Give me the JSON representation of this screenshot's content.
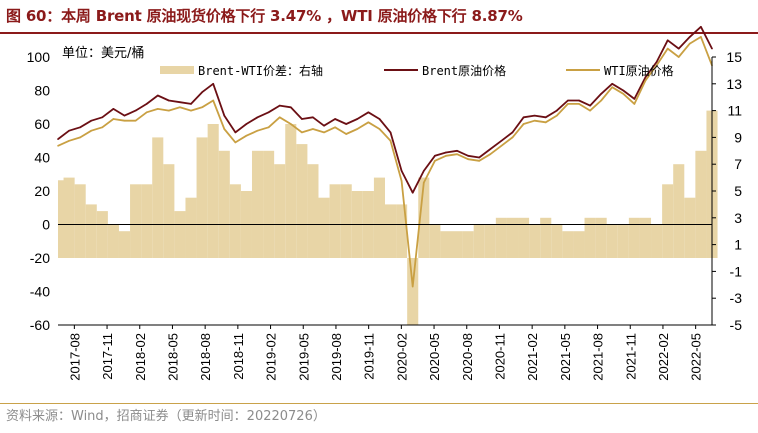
{
  "header": {
    "title": "图 60：本周 Brent 原油现货价格下行 3.47% ，WTI 原油价格下行 8.87%"
  },
  "footer": {
    "source": "资料来源：Wind，招商证券（更新时间：20220726）"
  },
  "chart_data": {
    "type": "line",
    "title": "图 60：本周 Brent 原油现货价格下行 3.47% ，WTI 原油价格下行 8.87%",
    "unit_label": "单位：美元/桶",
    "left_axis": {
      "ticks": [
        100,
        80,
        60,
        40,
        20,
        0,
        -20,
        -40,
        -60
      ],
      "range": [
        -60,
        100
      ]
    },
    "right_axis": {
      "ticks": [
        15,
        13,
        11,
        9,
        7,
        5,
        3,
        1,
        -1,
        -3,
        -5
      ],
      "range": [
        -5,
        15
      ]
    },
    "x_tick_labels": [
      "2017-08",
      "2017-11",
      "2018-02",
      "2018-05",
      "2018-08",
      "2018-11",
      "2019-02",
      "2019-05",
      "2019-08",
      "2019-11",
      "2020-02",
      "2020-05",
      "2020-08",
      "2020-11",
      "2021-02",
      "2021-05",
      "2021-08",
      "2021-11",
      "2022-02",
      "2022-05"
    ],
    "legend": [
      "Brent-WTI价差：右轴",
      "Brent原油价格",
      "WTI原油价格"
    ],
    "colors": {
      "spread": "#e8d5a6",
      "brent": "#6b0f14",
      "wti": "#c9a043"
    },
    "series": [
      {
        "name": "Brent原油价格",
        "axis": "left",
        "x": [
          "2017-08",
          "2017-09",
          "2017-10",
          "2017-11",
          "2017-12",
          "2018-01",
          "2018-02",
          "2018-03",
          "2018-04",
          "2018-05",
          "2018-06",
          "2018-07",
          "2018-08",
          "2018-09",
          "2018-10",
          "2018-11",
          "2018-12",
          "2019-01",
          "2019-02",
          "2019-03",
          "2019-04",
          "2019-05",
          "2019-06",
          "2019-07",
          "2019-08",
          "2019-09",
          "2019-10",
          "2019-11",
          "2019-12",
          "2020-01",
          "2020-02",
          "2020-03",
          "2020-04",
          "2020-05",
          "2020-06",
          "2020-07",
          "2020-08",
          "2020-09",
          "2020-10",
          "2020-11",
          "2020-12",
          "2021-01",
          "2021-02",
          "2021-03",
          "2021-04",
          "2021-05",
          "2021-06",
          "2021-07",
          "2021-08",
          "2021-09",
          "2021-10",
          "2021-11",
          "2021-12",
          "2022-01",
          "2022-02",
          "2022-03",
          "2022-04",
          "2022-05",
          "2022-06",
          "2022-07"
        ],
        "values": [
          51,
          56,
          58,
          62,
          64,
          69,
          65,
          68,
          72,
          77,
          74,
          73,
          72,
          79,
          84,
          65,
          55,
          60,
          64,
          67,
          71,
          70,
          63,
          64,
          59,
          63,
          60,
          63,
          67,
          63,
          55,
          32,
          19,
          32,
          41,
          43,
          44,
          41,
          40,
          45,
          50,
          55,
          64,
          65,
          64,
          68,
          74,
          74,
          71,
          78,
          84,
          80,
          75,
          88,
          97,
          110,
          105,
          112,
          118,
          105
        ]
      },
      {
        "name": "WTI原油价格",
        "axis": "left",
        "x": [
          "2017-08",
          "2017-09",
          "2017-10",
          "2017-11",
          "2017-12",
          "2018-01",
          "2018-02",
          "2018-03",
          "2018-04",
          "2018-05",
          "2018-06",
          "2018-07",
          "2018-08",
          "2018-09",
          "2018-10",
          "2018-11",
          "2018-12",
          "2019-01",
          "2019-02",
          "2019-03",
          "2019-04",
          "2019-05",
          "2019-06",
          "2019-07",
          "2019-08",
          "2019-09",
          "2019-10",
          "2019-11",
          "2019-12",
          "2020-01",
          "2020-02",
          "2020-03",
          "2020-04",
          "2020-05",
          "2020-06",
          "2020-07",
          "2020-08",
          "2020-09",
          "2020-10",
          "2020-11",
          "2020-12",
          "2021-01",
          "2021-02",
          "2021-03",
          "2021-04",
          "2021-05",
          "2021-06",
          "2021-07",
          "2021-08",
          "2021-09",
          "2021-10",
          "2021-11",
          "2021-12",
          "2022-01",
          "2022-02",
          "2022-03",
          "2022-04",
          "2022-05",
          "2022-06",
          "2022-07"
        ],
        "values": [
          47,
          50,
          52,
          56,
          58,
          63,
          62,
          62,
          67,
          69,
          68,
          70,
          68,
          70,
          74,
          57,
          49,
          53,
          56,
          58,
          64,
          60,
          55,
          57,
          55,
          58,
          54,
          57,
          61,
          57,
          50,
          26,
          -37,
          25,
          38,
          41,
          42,
          39,
          38,
          42,
          47,
          52,
          60,
          62,
          61,
          65,
          72,
          72,
          68,
          74,
          82,
          78,
          72,
          86,
          95,
          105,
          100,
          108,
          112,
          95
        ]
      },
      {
        "name": "Brent-WTI价差：右轴",
        "axis": "right",
        "x": [
          "2017-08",
          "2017-09",
          "2017-10",
          "2017-11",
          "2017-12",
          "2018-01",
          "2018-02",
          "2018-03",
          "2018-04",
          "2018-05",
          "2018-06",
          "2018-07",
          "2018-08",
          "2018-09",
          "2018-10",
          "2018-11",
          "2018-12",
          "2019-01",
          "2019-02",
          "2019-03",
          "2019-04",
          "2019-05",
          "2019-06",
          "2019-07",
          "2019-08",
          "2019-09",
          "2019-10",
          "2019-11",
          "2019-12",
          "2020-01",
          "2020-02",
          "2020-03",
          "2020-04",
          "2020-05",
          "2020-06",
          "2020-07",
          "2020-08",
          "2020-09",
          "2020-10",
          "2020-11",
          "2020-12",
          "2021-01",
          "2021-02",
          "2021-03",
          "2021-04",
          "2021-05",
          "2021-06",
          "2021-07",
          "2021-08",
          "2021-09",
          "2021-10",
          "2021-11",
          "2021-12",
          "2022-01",
          "2022-02",
          "2022-03",
          "2022-04",
          "2022-05",
          "2022-06",
          "2022-07"
        ],
        "values": [
          5.8,
          6,
          5.5,
          4,
          3.5,
          2.5,
          2,
          5.5,
          5.5,
          9,
          7,
          3.5,
          4.5,
          9,
          10,
          8,
          5.5,
          5,
          8,
          8,
          7,
          10,
          8.5,
          7,
          4.5,
          5.5,
          5.5,
          5,
          5,
          6,
          4,
          4,
          -5,
          6,
          2.5,
          2,
          2,
          2,
          2.5,
          2.5,
          3,
          3,
          3,
          2.5,
          3,
          2.5,
          2,
          2,
          3,
          3,
          2.5,
          2.5,
          3,
          3,
          2.5,
          5.5,
          7,
          4.5,
          8,
          11
        ]
      }
    ]
  }
}
